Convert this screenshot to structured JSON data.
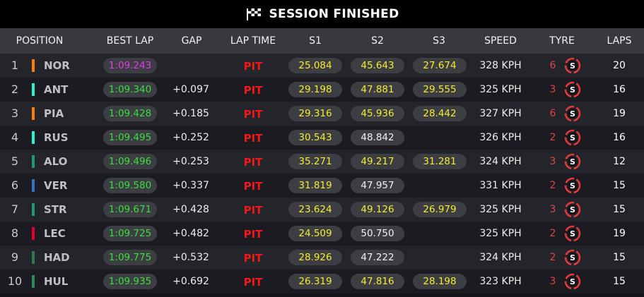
{
  "title": "SESSION FINISHED",
  "columns": {
    "position": "POSITION",
    "best_lap": "BEST LAP",
    "gap": "GAP",
    "lap_time": "LAP TIME",
    "s1": "S1",
    "s2": "S2",
    "s3": "S3",
    "speed": "SPEED",
    "tyre": "TYRE",
    "laps": "LAPS"
  },
  "rows": [
    {
      "pos": "1",
      "driver": "NOR",
      "team_color": "#ff8000",
      "best_lap": "1:09.243",
      "best_purple": true,
      "gap": "",
      "lap_time": "PIT",
      "s1": "25.084",
      "s2": "45.643",
      "s2_yellow": true,
      "s3": "27.674",
      "speed": "328 KPH",
      "tyre_age": "6",
      "tyre": "S",
      "laps": "20"
    },
    {
      "pos": "2",
      "driver": "ANT",
      "team_color": "#27f4d2",
      "best_lap": "1:09.340",
      "best_purple": false,
      "gap": "+0.097",
      "lap_time": "PIT",
      "s1": "29.198",
      "s2": "47.881",
      "s2_yellow": true,
      "s3": "29.555",
      "speed": "325 KPH",
      "tyre_age": "3",
      "tyre": "S",
      "laps": "16"
    },
    {
      "pos": "3",
      "driver": "PIA",
      "team_color": "#ff8000",
      "best_lap": "1:09.428",
      "best_purple": false,
      "gap": "+0.185",
      "lap_time": "PIT",
      "s1": "29.316",
      "s2": "45.936",
      "s2_yellow": true,
      "s3": "28.442",
      "speed": "327 KPH",
      "tyre_age": "6",
      "tyre": "S",
      "laps": "19"
    },
    {
      "pos": "4",
      "driver": "RUS",
      "team_color": "#27f4d2",
      "best_lap": "1:09.495",
      "best_purple": false,
      "gap": "+0.252",
      "lap_time": "PIT",
      "s1": "30.543",
      "s2": "48.842",
      "s2_yellow": false,
      "s3": "",
      "speed": "326 KPH",
      "tyre_age": "2",
      "tyre": "S",
      "laps": "16"
    },
    {
      "pos": "5",
      "driver": "ALO",
      "team_color": "#229971",
      "best_lap": "1:09.496",
      "best_purple": false,
      "gap": "+0.253",
      "lap_time": "PIT",
      "s1": "35.271",
      "s2": "49.217",
      "s2_yellow": true,
      "s3": "31.281",
      "speed": "324 KPH",
      "tyre_age": "3",
      "tyre": "S",
      "laps": "12"
    },
    {
      "pos": "6",
      "driver": "VER",
      "team_color": "#3671c6",
      "best_lap": "1:09.580",
      "best_purple": false,
      "gap": "+0.337",
      "lap_time": "PIT",
      "s1": "31.819",
      "s2": "47.957",
      "s2_yellow": false,
      "s3": "",
      "speed": "331 KPH",
      "tyre_age": "2",
      "tyre": "S",
      "laps": "15"
    },
    {
      "pos": "7",
      "driver": "STR",
      "team_color": "#229971",
      "best_lap": "1:09.671",
      "best_purple": false,
      "gap": "+0.428",
      "lap_time": "PIT",
      "s1": "23.624",
      "s2": "49.126",
      "s2_yellow": true,
      "s3": "26.979",
      "speed": "325 KPH",
      "tyre_age": "3",
      "tyre": "S",
      "laps": "15"
    },
    {
      "pos": "8",
      "driver": "LEC",
      "team_color": "#e8002d",
      "best_lap": "1:09.725",
      "best_purple": false,
      "gap": "+0.482",
      "lap_time": "PIT",
      "s1": "24.509",
      "s2": "50.750",
      "s2_yellow": false,
      "s3": "",
      "speed": "325 KPH",
      "tyre_age": "2",
      "tyre": "S",
      "laps": "19"
    },
    {
      "pos": "9",
      "driver": "HAD",
      "team_color": "#2a7a4a",
      "best_lap": "1:09.775",
      "best_purple": false,
      "gap": "+0.532",
      "lap_time": "PIT",
      "s1": "28.926",
      "s2": "47.222",
      "s2_yellow": false,
      "s3": "",
      "speed": "324 KPH",
      "tyre_age": "2",
      "tyre": "S",
      "laps": "15"
    },
    {
      "pos": "10",
      "driver": "HUL",
      "team_color": "#2a8a58",
      "best_lap": "1:09.935",
      "best_purple": false,
      "gap": "+0.692",
      "lap_time": "PIT",
      "s1": "26.319",
      "s2": "47.816",
      "s2_yellow": true,
      "s3": "28.198",
      "speed": "323 KPH",
      "tyre_age": "3",
      "tyre": "S",
      "laps": "15"
    }
  ],
  "colors": {
    "purple": "#e23ae6",
    "green": "#35e03a",
    "yellow": "#f2ee2a",
    "pit_red": "#f01818",
    "tyre_red": "#e03a3a"
  }
}
